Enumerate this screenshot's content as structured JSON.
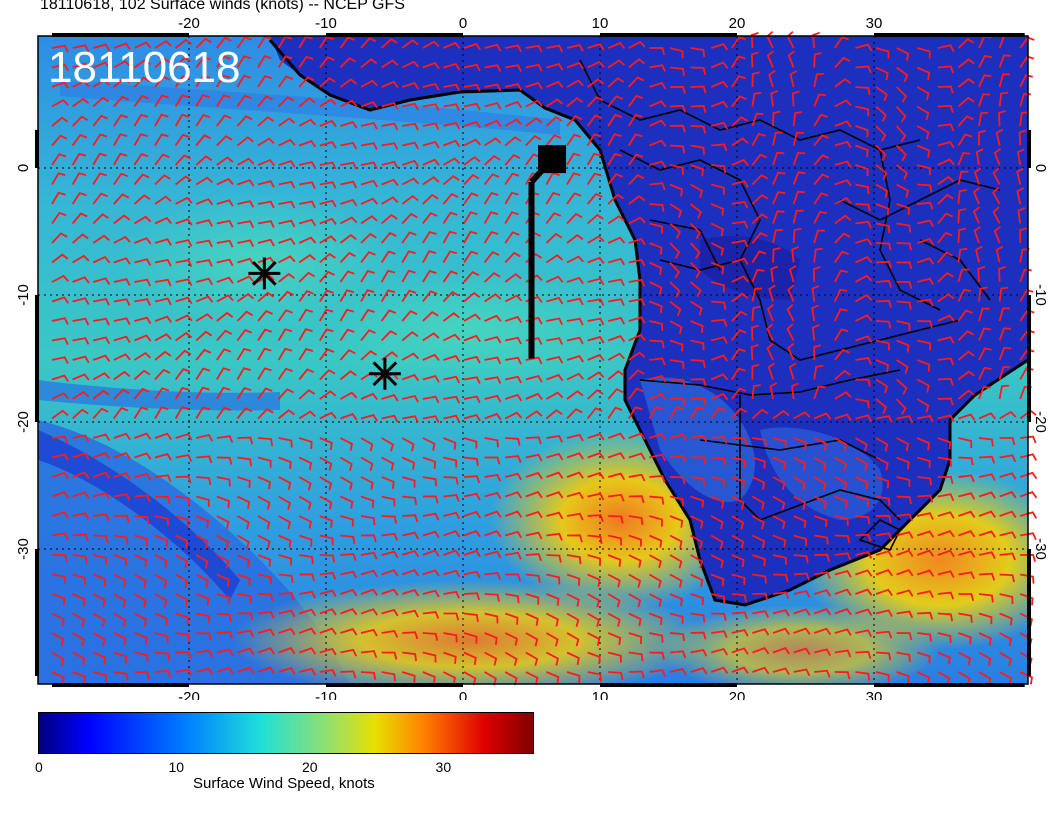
{
  "title": "18110618, 102 Surface winds (knots) -- NCEP GFS",
  "stamp": "18110618",
  "colors": {
    "ocean_deep": "#1a3ed0",
    "ocean_mid": "#2a8ee8",
    "ocean_teal": "#3cc8c8",
    "land_blue": "#1c2fbf",
    "yellow": "#d9d418",
    "orange": "#f09020",
    "barb": "#ff1a1a",
    "coast": "#000000"
  },
  "map": {
    "lon_ticks_top": [
      "-20",
      "-10",
      "0",
      "10",
      "20",
      "30"
    ],
    "lon_ticks_bottom": [
      "-20",
      "-10",
      "0",
      "10",
      "20",
      "30"
    ],
    "lat_ticks_left": [
      "0",
      "-10",
      "-20",
      "-30"
    ],
    "lat_ticks_right": [
      "0",
      "-10",
      "-20",
      "-30"
    ],
    "markers": [
      {
        "name": "asterisk-1",
        "lon": -14.5,
        "lat": -8.3
      },
      {
        "name": "asterisk-2",
        "lon": -5.7,
        "lat": -16.2
      }
    ],
    "track": {
      "name": "track-line",
      "lon": 5,
      "lat_from": -15,
      "lat_to": 0,
      "end_lon": 6.5,
      "end_lat": 0.7
    }
  },
  "colorbar": {
    "ticks": [
      "0",
      "10",
      "20",
      "30"
    ],
    "label": "Surface Wind Speed, knots",
    "min": 0,
    "max": 37
  }
}
